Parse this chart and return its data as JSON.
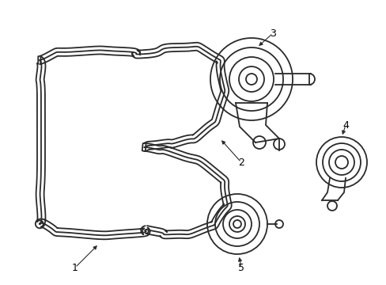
{
  "background_color": "#ffffff",
  "line_color": "#2a2a2a",
  "line_width": 1.3,
  "label_color": "#000000",
  "label_fontsize": 9,
  "figsize": [
    4.89,
    3.6
  ],
  "dpi": 100
}
